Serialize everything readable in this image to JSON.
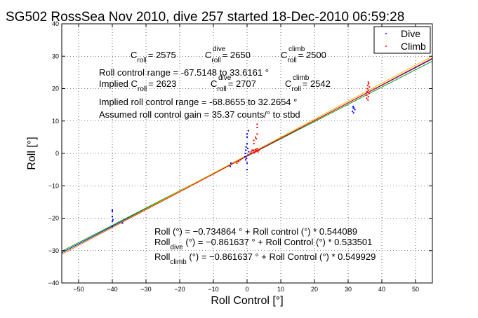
{
  "chart_data": {
    "type": "scatter",
    "title": "SG502 RossSea Nov 2010, dive 257 started 18-Dec-2010 06:59:28",
    "xlabel": "Roll Control [°]",
    "ylabel": "Roll [°]",
    "xlim": [
      -55,
      55
    ],
    "ylim": [
      -40,
      40
    ],
    "xticks": [
      -50,
      -40,
      -30,
      -20,
      -10,
      0,
      10,
      20,
      30,
      40,
      50
    ],
    "yticks": [
      -40,
      -30,
      -20,
      -10,
      0,
      10,
      20,
      30,
      40
    ],
    "grid": true,
    "legend": {
      "placement": "top-right",
      "entries": [
        {
          "name": "Dive",
          "color": "#0000ff"
        },
        {
          "name": "Climb",
          "color": "#ff0000"
        }
      ]
    },
    "series": [
      {
        "name": "Dive",
        "color": "#0000ff",
        "points": [
          [
            -40,
            -18
          ],
          [
            -40,
            -19.5
          ],
          [
            -40,
            -21
          ],
          [
            -40,
            -22.5
          ],
          [
            -40,
            -17.5
          ],
          [
            -39.8,
            -20.5
          ],
          [
            -37,
            -21.5
          ],
          [
            -5,
            -4
          ],
          [
            -4.8,
            -3
          ],
          [
            -0.6,
            -1
          ],
          [
            -0.5,
            0
          ],
          [
            -0.4,
            1
          ],
          [
            -0.4,
            -2
          ],
          [
            -0.3,
            2
          ],
          [
            -0.2,
            -1.5
          ],
          [
            0,
            3
          ],
          [
            0,
            5
          ],
          [
            0,
            6
          ],
          [
            0,
            -3
          ],
          [
            0,
            -5
          ],
          [
            0.2,
            1.5
          ],
          [
            0.3,
            -0.5
          ],
          [
            0.5,
            0.5
          ],
          [
            0.4,
            7
          ],
          [
            31.3,
            13
          ],
          [
            31.5,
            14
          ],
          [
            31.5,
            14.5
          ],
          [
            31.6,
            12.5
          ],
          [
            31.7,
            14
          ],
          [
            32,
            13.5
          ]
        ]
      },
      {
        "name": "Climb",
        "color": "#ff0000",
        "points": [
          [
            1,
            0
          ],
          [
            1.2,
            0.5
          ],
          [
            1.5,
            1
          ],
          [
            1.8,
            0.8
          ],
          [
            2,
            1
          ],
          [
            2.2,
            0.2
          ],
          [
            2.5,
            1.2
          ],
          [
            2.6,
            0.6
          ],
          [
            2.8,
            1
          ],
          [
            3,
            1.5
          ],
          [
            3.2,
            0.5
          ],
          [
            3.5,
            1
          ],
          [
            2,
            3
          ],
          [
            2,
            4
          ],
          [
            2.5,
            5
          ],
          [
            3,
            6
          ],
          [
            3,
            8
          ],
          [
            3,
            9
          ],
          [
            2.7,
            4.5
          ],
          [
            -3,
            -3
          ],
          [
            -2.5,
            -2.5
          ],
          [
            -2,
            -2
          ],
          [
            35.5,
            17
          ],
          [
            35.5,
            18
          ],
          [
            35.6,
            19
          ],
          [
            35.7,
            20
          ],
          [
            35.8,
            21
          ],
          [
            36,
            22
          ],
          [
            36,
            17.5
          ],
          [
            36,
            19.5
          ],
          [
            36.2,
            18.5
          ],
          [
            36.3,
            20.5
          ],
          [
            35.9,
            16.5
          ],
          [
            36.1,
            21.5
          ]
        ]
      }
    ],
    "fit_lines": [
      {
        "color": "#0000ff",
        "intercept": -0.734864,
        "slope": 0.544089
      },
      {
        "color": "#00a000",
        "intercept": -0.861637,
        "slope": 0.533501
      },
      {
        "color": "#ff0000",
        "intercept": -0.861637,
        "slope": 0.549929
      },
      {
        "color": "#e0c000",
        "intercept": -0.53,
        "slope": 0.555
      }
    ],
    "annotations": {
      "c_roll": {
        "label": "C",
        "sub": "roll",
        "value": "= 2575"
      },
      "c_roll_dive": {
        "label": "C",
        "sup": "dive",
        "sub": "roll",
        "value": "= 2650"
      },
      "c_roll_climb": {
        "label": "C",
        "sup": "climb",
        "sub": "roll",
        "value": "= 2500"
      },
      "range_text": "Roll control range = -67.5148 to 33.6161 °",
      "implied_prefix": "Implied C",
      "implied_sub": "roll",
      "implied_value": "= 2623",
      "implied_dive": {
        "label": "C",
        "sup": "dive",
        "sub": "roll",
        "value": "= 2707"
      },
      "implied_climb": {
        "label": "C",
        "sup": "climb",
        "sub": "roll",
        "value": "= 2542"
      },
      "implied_range_text": "Implied roll control range = -68.8655 to 32.2654 °",
      "gain_text": "Assumed roll control gain = 35.37 counts/° to stbd",
      "fit_text": "Roll (°) = −0.734864 ° + Roll control (°) * 0.544089",
      "fit_dive": {
        "label": "Roll",
        "sub": "dive",
        "text": " (°) = −0.861637 ° + Roll Control (°) * 0.533501"
      },
      "fit_climb": {
        "label": "Roll",
        "sub": "climb",
        "text": " (°) = −0.861637 ° + Roll Control (°) * 0.549929"
      }
    }
  }
}
